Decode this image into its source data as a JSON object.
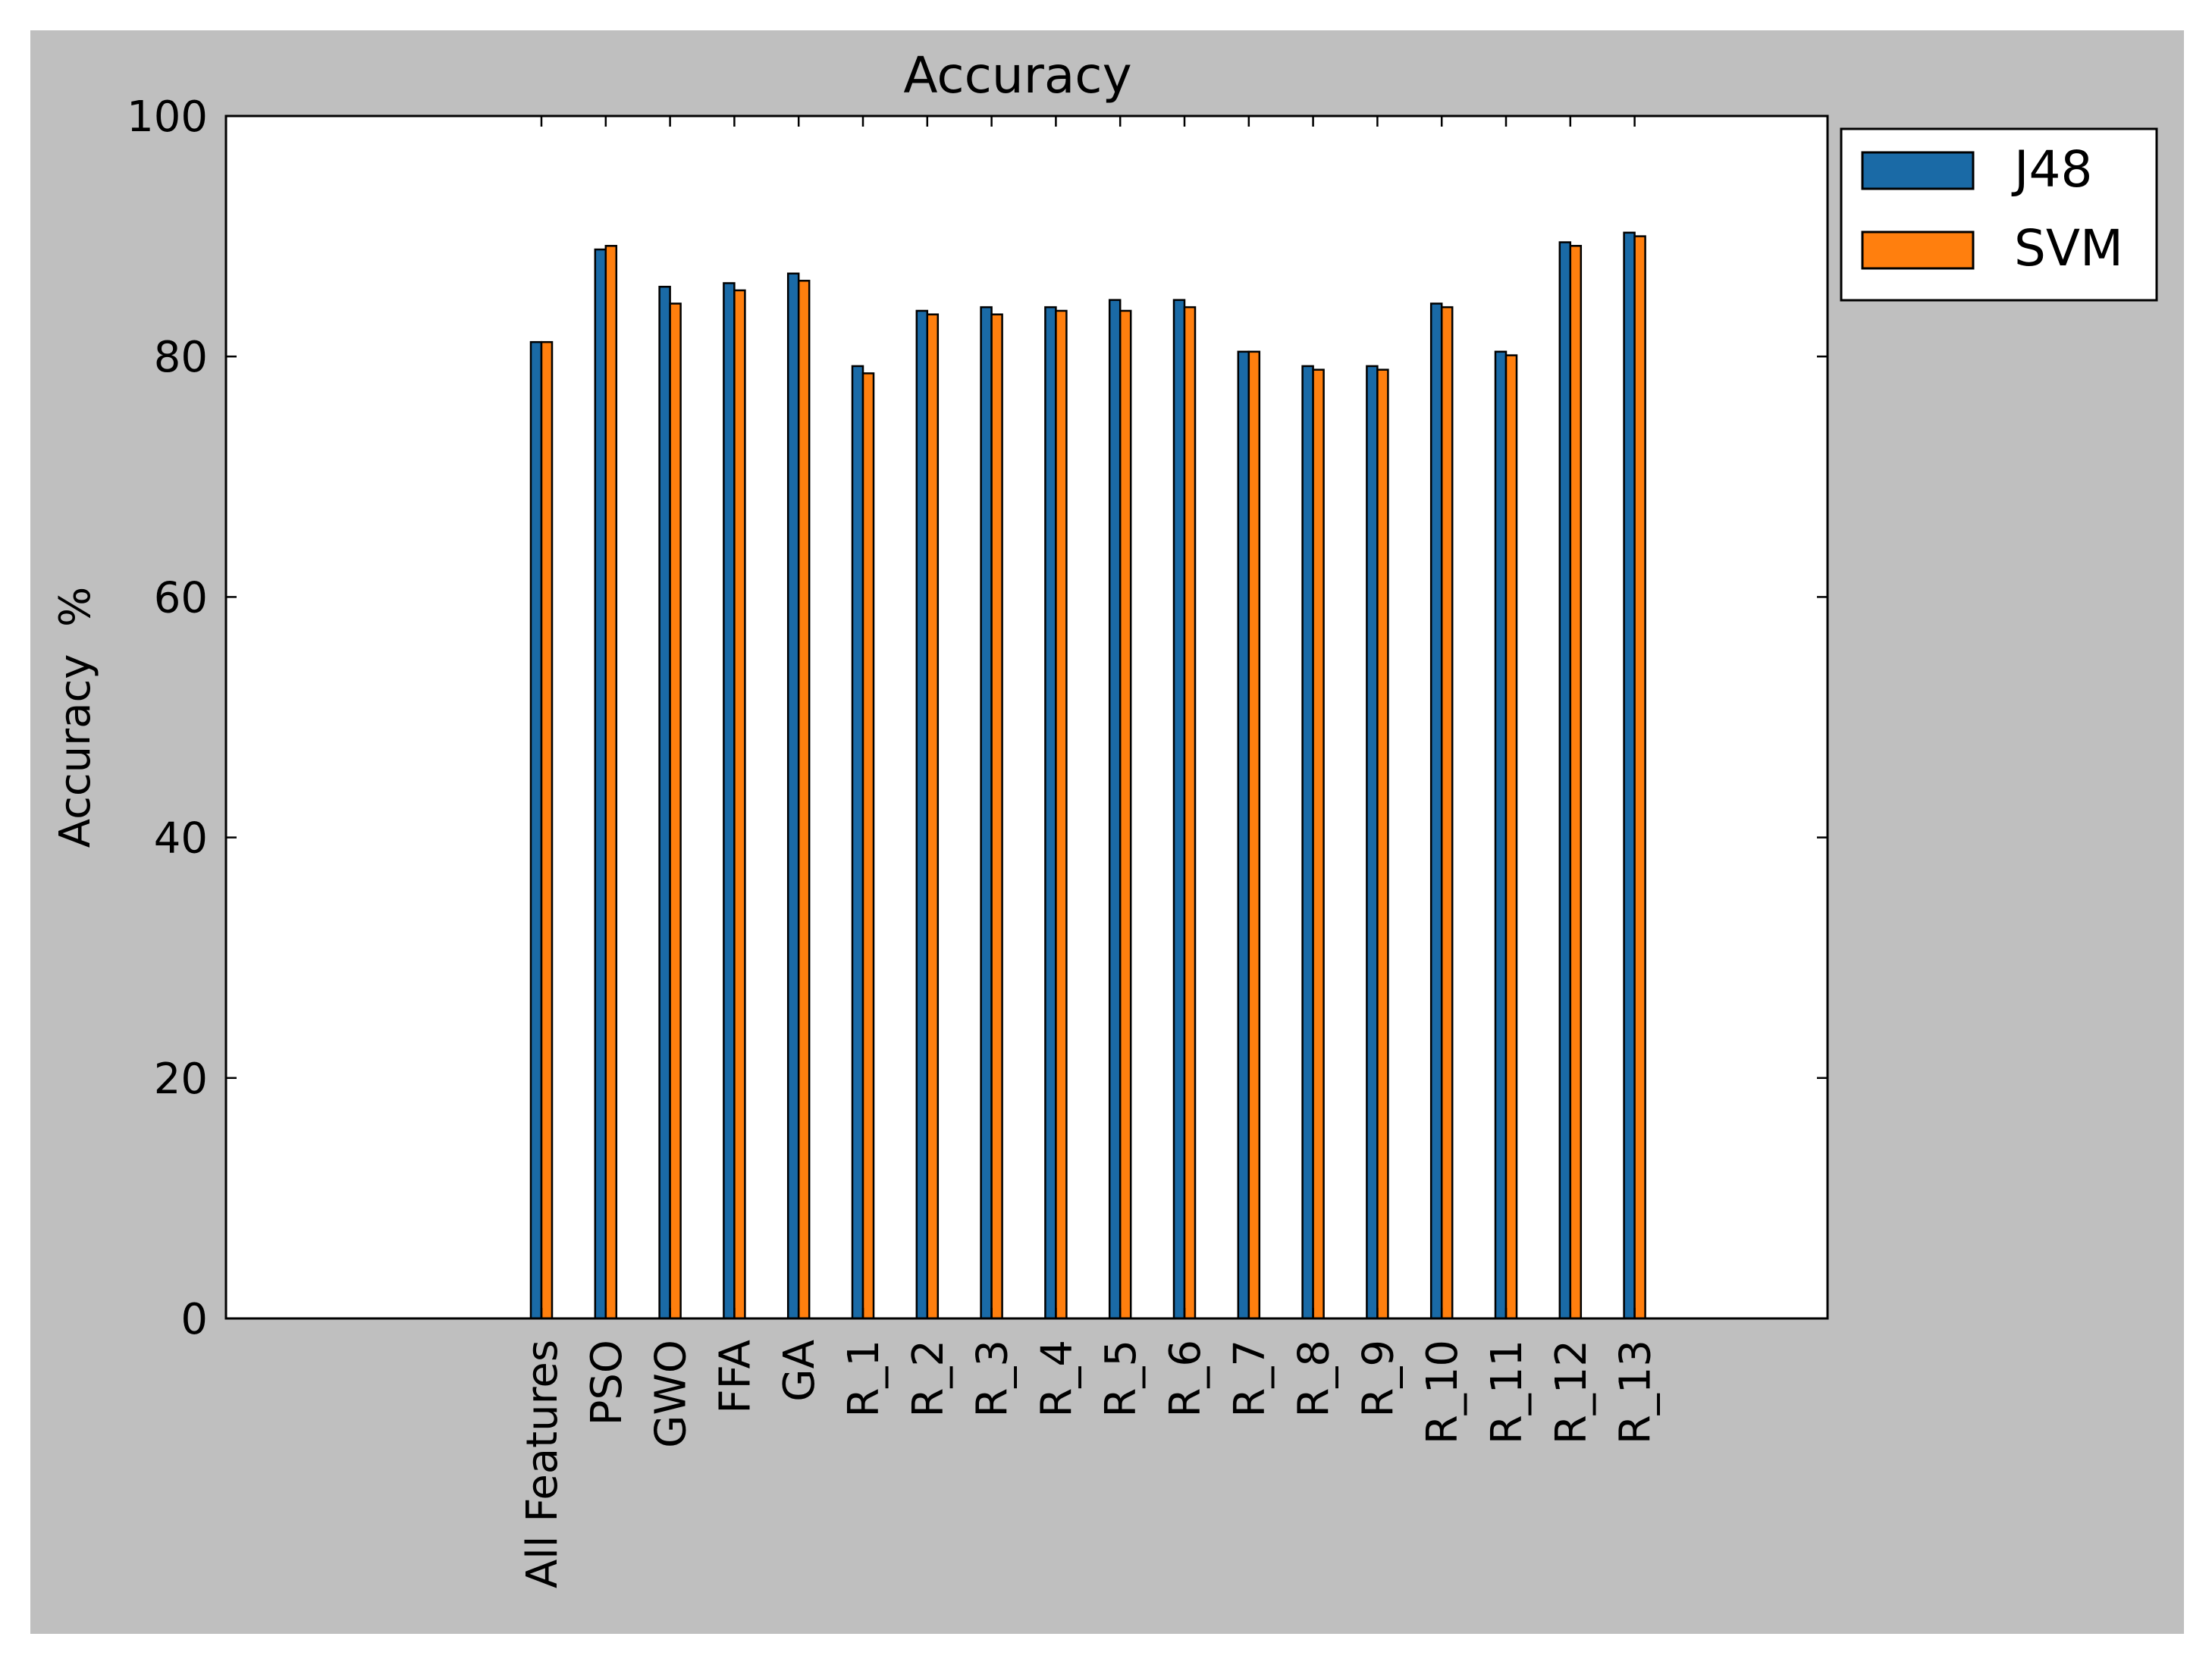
{
  "chart_data": {
    "type": "bar",
    "title": "Accuracy",
    "xlabel": "",
    "ylabel": "Accuracy  %",
    "ylim": [
      0,
      100
    ],
    "yticks": [
      "0",
      "20",
      "40",
      "60",
      "80",
      "100"
    ],
    "grid": false,
    "legend_position": "outside-top-right",
    "categories": [
      "All Features",
      "PSO",
      "GWO",
      "FFA",
      "GA",
      "R_1",
      "R_2",
      "R_3",
      "R_4",
      "R_5",
      "R_6",
      "R_7",
      "R_8",
      "R_9",
      "R_10",
      "R_11",
      "R_12",
      "R_13"
    ],
    "series": [
      {
        "name": "J48",
        "color": "#1a6aa6",
        "values": [
          81.2,
          88.9,
          85.8,
          86.1,
          86.9,
          79.2,
          83.8,
          84.1,
          84.1,
          84.7,
          84.7,
          80.4,
          79.2,
          79.2,
          84.4,
          80.4,
          89.5,
          90.3
        ]
      },
      {
        "name": "SVM",
        "color": "#ff7f0e",
        "values": [
          81.2,
          89.2,
          84.4,
          85.5,
          86.3,
          78.6,
          83.5,
          83.5,
          83.8,
          83.8,
          84.1,
          80.4,
          78.9,
          78.9,
          84.1,
          80.1,
          89.2,
          90.0
        ]
      }
    ]
  },
  "colors": {
    "figure_background": "#bfbfbf",
    "plot_background": "#ffffff"
  }
}
